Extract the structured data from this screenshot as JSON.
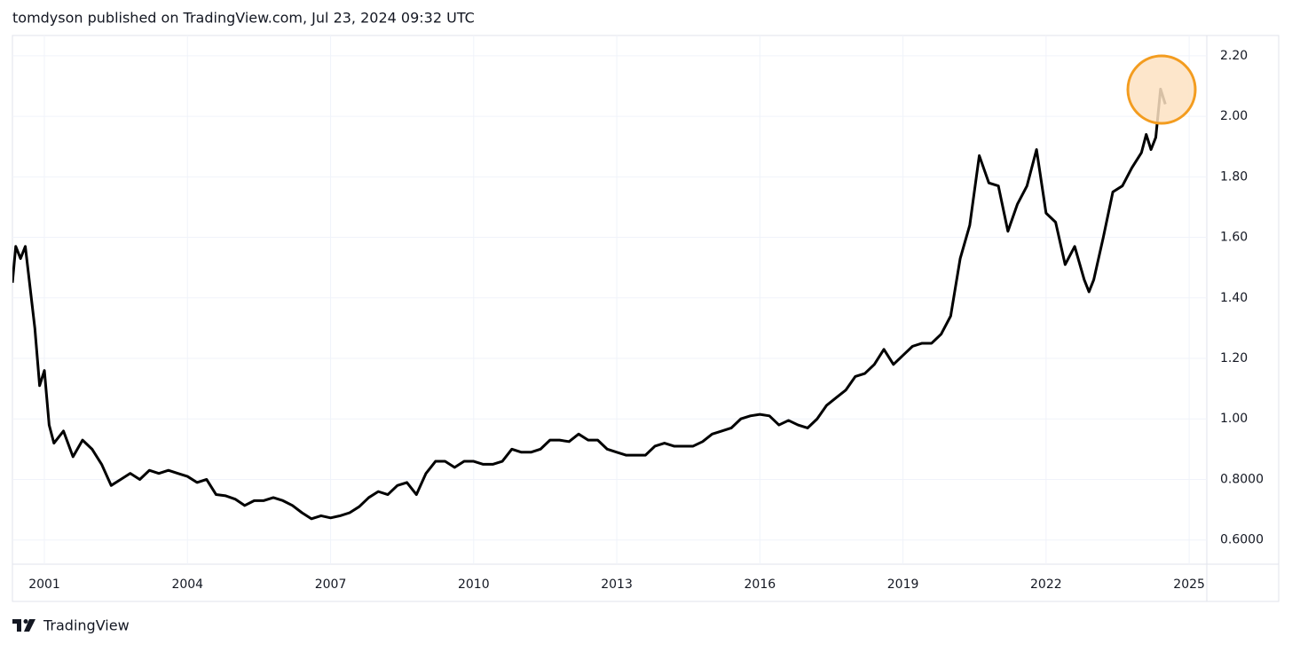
{
  "header": "tomdyson published on TradingView.com, Jul 23, 2024 09:32 UTC",
  "footer": "TradingView",
  "chart_data": {
    "type": "line",
    "color": "#000000",
    "grid": true,
    "xlim": [
      2000.33,
      2025.37
    ],
    "ylim": [
      0.52,
      2.267
    ],
    "xticks": [
      2001,
      2004,
      2007,
      2010,
      2013,
      2016,
      2019,
      2022,
      2025
    ],
    "yticks": [
      {
        "value": 2.2,
        "label": "2.20"
      },
      {
        "value": 2.0,
        "label": "2.00"
      },
      {
        "value": 1.8,
        "label": "1.80"
      },
      {
        "value": 1.6,
        "label": "1.60"
      },
      {
        "value": 1.4,
        "label": "1.40"
      },
      {
        "value": 1.2,
        "label": "1.20"
      },
      {
        "value": 1.0,
        "label": "1.00"
      },
      {
        "value": 0.8,
        "label": "0.8000"
      },
      {
        "value": 0.6,
        "label": "0.6000"
      }
    ],
    "x": [
      2000.33,
      2000.4,
      2000.5,
      2000.6,
      2000.8,
      2000.9,
      2001.0,
      2001.1,
      2001.2,
      2001.4,
      2001.6,
      2001.8,
      2002.0,
      2002.2,
      2002.4,
      2002.6,
      2002.8,
      2003.0,
      2003.2,
      2003.4,
      2003.6,
      2003.8,
      2004.0,
      2004.2,
      2004.4,
      2004.6,
      2004.8,
      2005.0,
      2005.2,
      2005.4,
      2005.6,
      2005.8,
      2006.0,
      2006.2,
      2006.4,
      2006.6,
      2006.8,
      2007.0,
      2007.2,
      2007.4,
      2007.6,
      2007.8,
      2008.0,
      2008.2,
      2008.4,
      2008.6,
      2008.8,
      2009.0,
      2009.2,
      2009.4,
      2009.6,
      2009.8,
      2010.0,
      2010.2,
      2010.4,
      2010.6,
      2010.8,
      2011.0,
      2011.2,
      2011.4,
      2011.6,
      2011.8,
      2012.0,
      2012.2,
      2012.4,
      2012.6,
      2012.8,
      2013.0,
      2013.2,
      2013.4,
      2013.6,
      2013.8,
      2014.0,
      2014.2,
      2014.4,
      2014.6,
      2014.8,
      2015.0,
      2015.2,
      2015.4,
      2015.6,
      2015.8,
      2016.0,
      2016.2,
      2016.4,
      2016.6,
      2016.8,
      2017.0,
      2017.2,
      2017.4,
      2017.6,
      2017.8,
      2018.0,
      2018.2,
      2018.4,
      2018.6,
      2018.8,
      2019.0,
      2019.2,
      2019.4,
      2019.6,
      2019.8,
      2020.0,
      2020.2,
      2020.4,
      2020.6,
      2020.8,
      2021.0,
      2021.2,
      2021.4,
      2021.6,
      2021.8,
      2022.0,
      2022.2,
      2022.4,
      2022.6,
      2022.8,
      2022.9,
      2023.0,
      2023.2,
      2023.4,
      2023.6,
      2023.8,
      2024.0,
      2024.1,
      2024.2,
      2024.3,
      2024.4,
      2024.5
    ],
    "values": [
      1.45,
      1.57,
      1.53,
      1.57,
      1.3,
      1.11,
      1.16,
      0.98,
      0.92,
      0.96,
      0.875,
      0.93,
      0.9,
      0.85,
      0.78,
      0.8,
      0.82,
      0.8,
      0.83,
      0.82,
      0.83,
      0.82,
      0.81,
      0.79,
      0.8,
      0.75,
      0.746,
      0.735,
      0.714,
      0.73,
      0.73,
      0.74,
      0.73,
      0.714,
      0.69,
      0.67,
      0.68,
      0.673,
      0.68,
      0.69,
      0.71,
      0.74,
      0.76,
      0.75,
      0.78,
      0.79,
      0.75,
      0.82,
      0.86,
      0.86,
      0.84,
      0.86,
      0.86,
      0.85,
      0.85,
      0.86,
      0.9,
      0.89,
      0.89,
      0.9,
      0.93,
      0.93,
      0.925,
      0.95,
      0.93,
      0.93,
      0.9,
      0.89,
      0.88,
      0.88,
      0.88,
      0.91,
      0.92,
      0.91,
      0.91,
      0.91,
      0.925,
      0.95,
      0.96,
      0.97,
      1.0,
      1.01,
      1.015,
      1.01,
      0.98,
      0.995,
      0.98,
      0.97,
      1.0,
      1.045,
      1.07,
      1.095,
      1.14,
      1.15,
      1.18,
      1.23,
      1.18,
      1.21,
      1.24,
      1.25,
      1.25,
      1.28,
      1.34,
      1.53,
      1.64,
      1.87,
      1.78,
      1.77,
      1.62,
      1.71,
      1.77,
      1.89,
      1.68,
      1.65,
      1.51,
      1.57,
      1.46,
      1.42,
      1.46,
      1.6,
      1.75,
      1.77,
      1.83,
      1.88,
      1.94,
      1.89,
      1.93,
      2.09,
      2.04
    ]
  }
}
